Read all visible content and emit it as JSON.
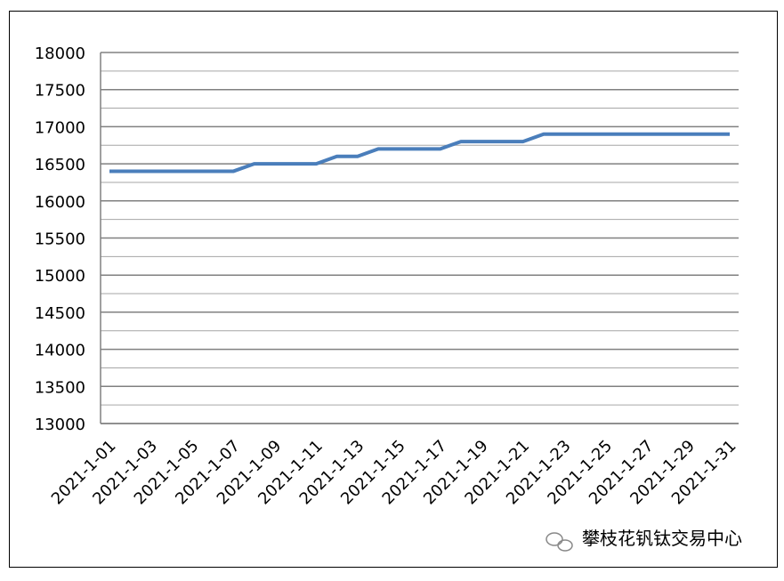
{
  "chart_data": {
    "type": "line",
    "categories": [
      "2021-1-01",
      null,
      "2021-1-03",
      null,
      "2021-1-05",
      null,
      "2021-1-07",
      null,
      "2021-1-09",
      null,
      "2021-1-11",
      null,
      "2021-1-13",
      null,
      "2021-1-15",
      null,
      "2021-1-17",
      null,
      "2021-1-19",
      null,
      "2021-1-21",
      null,
      "2021-1-23",
      null,
      "2021-1-25",
      null,
      "2021-1-27",
      null,
      "2021-1-29",
      null,
      "2021-1-31"
    ],
    "series": [
      {
        "color": "#4a7ebb",
        "values": [
          16400,
          16400,
          16400,
          16400,
          16400,
          16400,
          16400,
          16500,
          16500,
          16500,
          16500,
          16600,
          16600,
          16700,
          16700,
          16700,
          16700,
          16800,
          16800,
          16800,
          16800,
          16900,
          16900,
          16900,
          16900,
          16900,
          16900,
          16900,
          16900,
          16900,
          16900
        ]
      }
    ],
    "ylim": [
      13000,
      18000
    ],
    "yticks": [
      13000,
      13500,
      14000,
      14500,
      15000,
      15500,
      16000,
      16500,
      17000,
      17500,
      18000
    ],
    "minor_yticks": [
      13250,
      13750,
      14250,
      14750,
      15250,
      15750,
      16250,
      16750,
      17250,
      17750
    ],
    "grid": true,
    "watermark": "攀枝花钒钛交易中心"
  }
}
